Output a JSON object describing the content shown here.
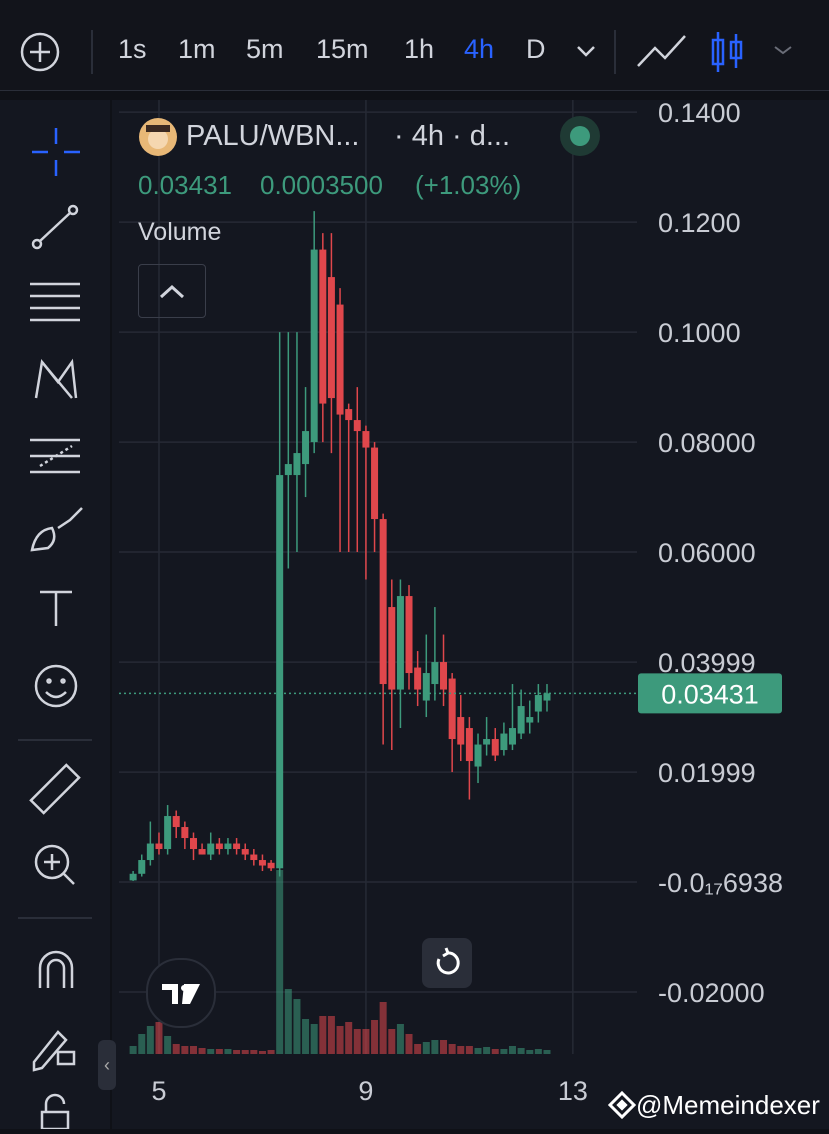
{
  "toolbar": {
    "timeframes": [
      "1s",
      "1m",
      "5m",
      "15m",
      "1h",
      "4h",
      "D"
    ],
    "active": "4h"
  },
  "legend": {
    "symbol": "PALU/WBN...",
    "interval": "· 4h · d...",
    "price": "0.03431",
    "change": "0.0003500",
    "change_pct": "(+1.03%)",
    "indicator": "Volume"
  },
  "watermark": "@Memeindexer",
  "chart_data": {
    "type": "candlestick",
    "x": [
      4.5,
      4.667,
      4.833,
      5,
      5.167,
      5.333,
      5.5,
      5.667,
      5.833,
      6,
      6.167,
      6.333,
      6.5,
      6.667,
      6.833,
      7,
      7.167,
      7.333,
      7.5,
      7.667,
      7.833,
      8,
      8.167,
      8.333,
      8.5,
      8.667,
      8.833,
      9,
      9.167,
      9.333,
      9.5,
      9.667,
      9.833,
      10,
      10.167,
      10.333,
      10.5,
      10.667,
      10.833,
      11,
      11.167,
      11.333,
      11.5,
      11.667,
      11.833,
      12,
      12.167,
      12.333,
      12.5
    ],
    "open": [
      0.0003,
      0.0015,
      0.004,
      0.007,
      0.006,
      0.012,
      0.01,
      0.008,
      0.006,
      0.005,
      0.007,
      0.006,
      0.007,
      0.006,
      0.005,
      0.004,
      0.0035,
      0.0025,
      0.074,
      0.074,
      0.076,
      0.08,
      0.115,
      0.11,
      0.105,
      0.086,
      0.084,
      0.082,
      0.079,
      0.066,
      0.05,
      0.035,
      0.052,
      0.039,
      0.033,
      0.036,
      0.04,
      0.037,
      0.03,
      0.028,
      0.021,
      0.025,
      0.026,
      0.024,
      0.025,
      0.027,
      0.029,
      0.031,
      0.033
    ],
    "high": [
      0.002,
      0.005,
      0.011,
      0.009,
      0.014,
      0.013,
      0.011,
      0.009,
      0.007,
      0.009,
      0.008,
      0.008,
      0.008,
      0.007,
      0.006,
      0.005,
      0.004,
      0.1,
      0.1,
      0.1,
      0.09,
      0.122,
      0.118,
      0.118,
      0.108,
      0.087,
      0.09,
      0.083,
      0.08,
      0.067,
      0.055,
      0.055,
      0.054,
      0.042,
      0.045,
      0.05,
      0.045,
      0.038,
      0.034,
      0.03,
      0.027,
      0.03,
      0.028,
      0.029,
      0.036,
      0.035,
      0.033,
      0.036,
      0.036
    ],
    "low": [
      0.0002,
      0.001,
      0.003,
      0.005,
      0.005,
      0.008,
      0.006,
      0.004,
      0.005,
      0.004,
      0.005,
      0.005,
      0.005,
      0.004,
      0.003,
      0.002,
      0.002,
      0.001,
      0.057,
      0.06,
      0.07,
      0.078,
      0.08,
      0.078,
      0.06,
      0.06,
      0.06,
      0.055,
      0.06,
      0.025,
      0.024,
      0.028,
      0.035,
      0.032,
      0.03,
      0.033,
      0.032,
      0.02,
      0.022,
      0.015,
      0.018,
      0.023,
      0.022,
      0.023,
      0.024,
      0.026,
      0.027,
      0.029,
      0.031
    ],
    "close": [
      0.0015,
      0.004,
      0.007,
      0.006,
      0.012,
      0.01,
      0.008,
      0.006,
      0.005,
      0.007,
      0.006,
      0.007,
      0.006,
      0.005,
      0.004,
      0.003,
      0.0025,
      0.074,
      0.076,
      0.078,
      0.082,
      0.115,
      0.087,
      0.088,
      0.085,
      0.084,
      0.082,
      0.079,
      0.066,
      0.036,
      0.035,
      0.052,
      0.038,
      0.035,
      0.038,
      0.04,
      0.035,
      0.026,
      0.025,
      0.022,
      0.025,
      0.026,
      0.023,
      0.027,
      0.028,
      0.032,
      0.03,
      0.034,
      0.03431
    ],
    "volume": [
      8,
      20,
      28,
      32,
      18,
      10,
      8,
      8,
      6,
      5,
      5,
      5,
      4,
      4,
      4,
      3,
      4,
      184,
      65,
      55,
      35,
      30,
      38,
      38,
      28,
      32,
      25,
      25,
      34,
      52,
      25,
      30,
      20,
      10,
      12,
      14,
      14,
      10,
      8,
      8,
      6,
      7,
      5,
      5,
      8,
      6,
      4,
      5,
      4
    ],
    "up_color": "#3d9a7c",
    "down_color": "#e0474c",
    "last_price": 0.03431,
    "xlim": [
      4.227,
      14.24
    ],
    "xticks": [
      5,
      9,
      13
    ],
    "ylim": [
      -0.03127,
      0.1422
    ],
    "yticks": [
      {
        "value": -0.02,
        "label": "-0.02000"
      },
      {
        "value": -6.938e-18,
        "label": "-0.0₁₇6938"
      },
      0.01999,
      0.03999,
      {
        "value": 0.06,
        "label": "0.06000"
      },
      {
        "value": 0.08,
        "label": "0.08000"
      },
      {
        "value": 0.1,
        "label": "0.1000"
      },
      {
        "value": 0.12,
        "label": "0.1200"
      },
      {
        "value": 0.14,
        "label": "0.1400"
      }
    ],
    "grid": true
  }
}
